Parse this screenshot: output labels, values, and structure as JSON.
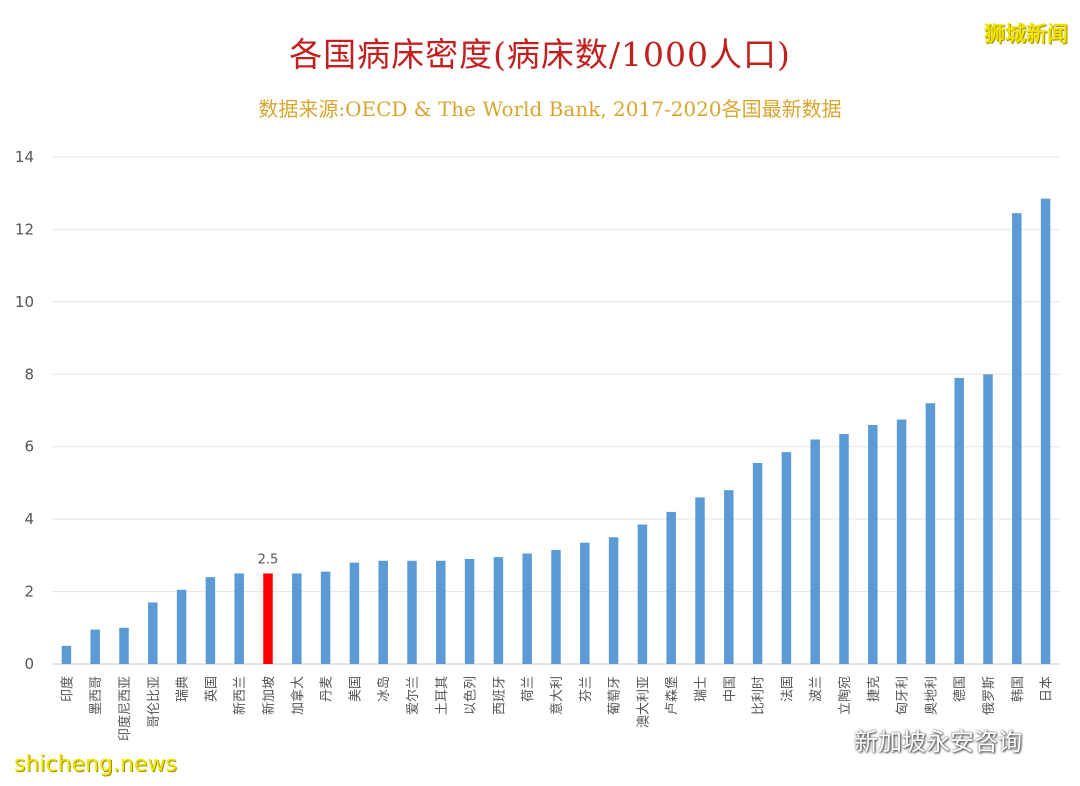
{
  "header": {
    "title": "各国病床密度(病床数/1000人口)",
    "subtitle": "数据来源:OECD & The World Bank, 2017-2020各国最新数据"
  },
  "watermarks": {
    "top_right": "狮城新闻",
    "bottom_left": "shicheng.news",
    "bottom_right": "新加坡永安咨询",
    "bottom_right_icon": "wechat-icon"
  },
  "chart_data": {
    "type": "bar",
    "title": "各国病床密度(病床数/1000人口)",
    "xlabel": "",
    "ylabel": "",
    "ylim": [
      0,
      14
    ],
    "yticks": [
      0,
      2,
      4,
      6,
      8,
      10,
      12,
      14
    ],
    "grid": true,
    "bar_color": "#5b9bd5",
    "highlight_color": "#ff0000",
    "highlight_index": 7,
    "data_labels": [
      {
        "index": 7,
        "text": "2.5"
      }
    ],
    "categories": [
      "印度",
      "墨西哥",
      "印度尼西亚",
      "哥伦比亚",
      "瑞典",
      "英国",
      "新西兰",
      "新加坡",
      "加拿大",
      "丹麦",
      "美国",
      "冰岛",
      "爱尔兰",
      "土耳其",
      "以色列",
      "西班牙",
      "荷兰",
      "意大利",
      "芬兰",
      "葡萄牙",
      "澳大利亚",
      "卢森堡",
      "瑞士",
      "中国",
      "比利时",
      "法国",
      "波兰",
      "立陶宛",
      "捷克",
      "匈牙利",
      "奥地利",
      "德国",
      "俄罗斯",
      "韩国",
      "日本"
    ],
    "values": [
      0.5,
      0.95,
      1.0,
      1.7,
      2.05,
      2.4,
      2.5,
      2.5,
      2.5,
      2.55,
      2.8,
      2.85,
      2.85,
      2.85,
      2.9,
      2.95,
      3.05,
      3.15,
      3.35,
      3.5,
      3.85,
      4.2,
      4.6,
      4.8,
      5.55,
      5.85,
      6.2,
      6.35,
      6.6,
      6.75,
      7.2,
      7.9,
      8.0,
      12.45,
      12.85
    ]
  }
}
